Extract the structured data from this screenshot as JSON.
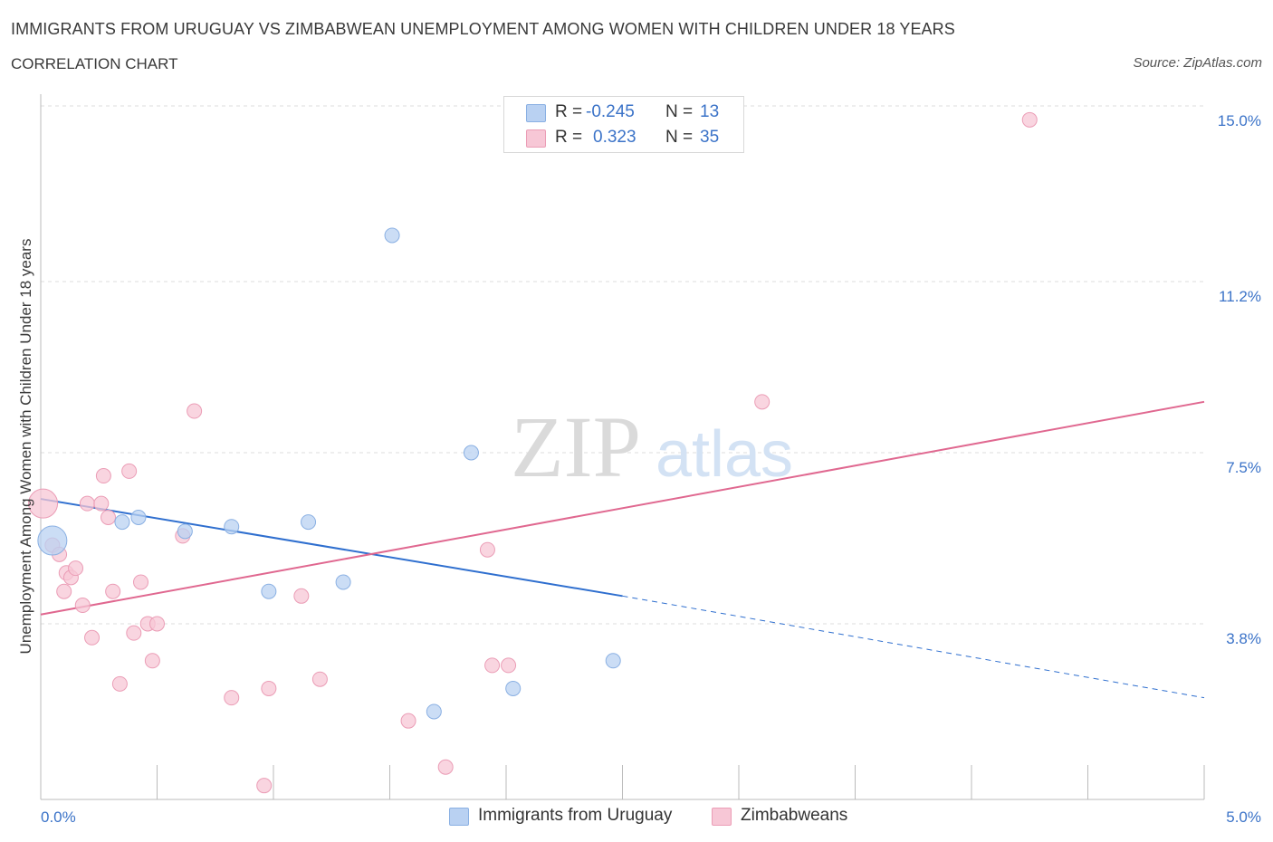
{
  "header": {
    "title": "IMMIGRANTS FROM URUGUAY VS ZIMBABWEAN UNEMPLOYMENT AMONG WOMEN WITH CHILDREN UNDER 18 YEARS",
    "subtitle": "CORRELATION CHART",
    "source": "Source: ZipAtlas.com"
  },
  "watermark": {
    "zip": "ZIP",
    "atlas": "atlas"
  },
  "colors": {
    "blue_fill": "#b9d1f2",
    "blue_stroke": "#8ab0e3",
    "blue_line": "#2f6fcf",
    "pink_fill": "#f7c7d6",
    "pink_stroke": "#eb9db6",
    "pink_line": "#e06890",
    "tick_text": "#3b73c8",
    "grid": "#dddddd"
  },
  "legend": {
    "r_label": "R =",
    "n_label": "N =",
    "rows": [
      {
        "r": "-0.245",
        "n": "13",
        "color": "#b9d1f2",
        "border": "#8ab0e3"
      },
      {
        "r": "0.323",
        "n": "35",
        "color": "#f7c7d6",
        "border": "#eb9db6"
      }
    ]
  },
  "chart_data": {
    "type": "scatter",
    "title": "IMMIGRANTS FROM URUGUAY VS ZIMBABWEAN UNEMPLOYMENT AMONG WOMEN WITH CHILDREN UNDER 18 YEARS",
    "xlabel": "",
    "ylabel": "Unemployment Among Women with Children Under 18 years",
    "xlim": [
      0,
      5.0
    ],
    "ylim": [
      0,
      15.0
    ],
    "x_tick_labels": [
      "0.0%",
      "5.0%"
    ],
    "y_ticks": [
      3.8,
      7.5,
      11.2,
      15.0
    ],
    "y_tick_labels": [
      "3.8%",
      "7.5%",
      "11.2%",
      "15.0%"
    ],
    "grid": true,
    "series": [
      {
        "name": "Immigrants from Uruguay",
        "color": "#b9d1f2",
        "points": [
          {
            "x": 0.05,
            "y": 5.6,
            "big": true
          },
          {
            "x": 0.35,
            "y": 6.0
          },
          {
            "x": 0.42,
            "y": 6.1
          },
          {
            "x": 0.62,
            "y": 5.8
          },
          {
            "x": 0.82,
            "y": 5.9
          },
          {
            "x": 0.98,
            "y": 4.5
          },
          {
            "x": 1.15,
            "y": 6.0
          },
          {
            "x": 1.3,
            "y": 4.7
          },
          {
            "x": 1.51,
            "y": 12.2
          },
          {
            "x": 1.69,
            "y": 1.9
          },
          {
            "x": 1.85,
            "y": 7.5
          },
          {
            "x": 2.03,
            "y": 2.4
          },
          {
            "x": 2.46,
            "y": 3.0
          }
        ],
        "trend": {
          "x0": 0.0,
          "y0": 6.5,
          "x1": 2.5,
          "y1": 4.4,
          "x_end": 5.0,
          "y_end": 2.2
        }
      },
      {
        "name": "Zimbabweans",
        "color": "#f7c7d6",
        "points": [
          {
            "x": 0.01,
            "y": 6.4,
            "big": true
          },
          {
            "x": 0.05,
            "y": 5.5
          },
          {
            "x": 0.08,
            "y": 5.3
          },
          {
            "x": 0.1,
            "y": 4.5
          },
          {
            "x": 0.11,
            "y": 4.9
          },
          {
            "x": 0.13,
            "y": 4.8
          },
          {
            "x": 0.15,
            "y": 5.0
          },
          {
            "x": 0.18,
            "y": 4.2
          },
          {
            "x": 0.2,
            "y": 6.4
          },
          {
            "x": 0.22,
            "y": 3.5
          },
          {
            "x": 0.27,
            "y": 7.0
          },
          {
            "x": 0.26,
            "y": 6.4
          },
          {
            "x": 0.29,
            "y": 6.1
          },
          {
            "x": 0.31,
            "y": 4.5
          },
          {
            "x": 0.34,
            "y": 2.5
          },
          {
            "x": 0.38,
            "y": 7.1
          },
          {
            "x": 0.4,
            "y": 3.6
          },
          {
            "x": 0.43,
            "y": 4.7
          },
          {
            "x": 0.46,
            "y": 3.8
          },
          {
            "x": 0.48,
            "y": 3.0
          },
          {
            "x": 0.5,
            "y": 3.8
          },
          {
            "x": 0.61,
            "y": 5.7
          },
          {
            "x": 0.66,
            "y": 8.4
          },
          {
            "x": 0.82,
            "y": 2.2
          },
          {
            "x": 0.96,
            "y": 0.3
          },
          {
            "x": 0.98,
            "y": 2.4
          },
          {
            "x": 1.12,
            "y": 4.4
          },
          {
            "x": 1.2,
            "y": 2.6
          },
          {
            "x": 1.58,
            "y": 1.7
          },
          {
            "x": 1.74,
            "y": 0.7
          },
          {
            "x": 1.92,
            "y": 5.4
          },
          {
            "x": 1.94,
            "y": 2.9
          },
          {
            "x": 2.01,
            "y": 2.9
          },
          {
            "x": 3.1,
            "y": 8.6
          },
          {
            "x": 4.25,
            "y": 14.7
          }
        ],
        "trend": {
          "x0": 0.0,
          "y0": 4.0,
          "x1": 5.0,
          "y1": 8.6
        }
      }
    ]
  }
}
